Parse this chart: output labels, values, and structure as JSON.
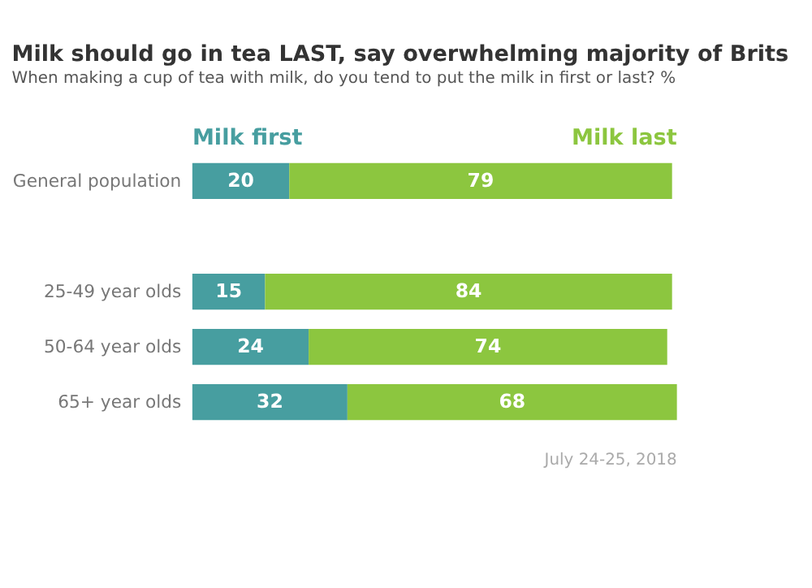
{
  "chart_data": {
    "type": "bar",
    "orientation": "horizontal",
    "stacked": true,
    "data_labels": true,
    "tick_labels": "y",
    "title": "Milk should go in tea LAST, say overwhelming majority of Brits",
    "subtitle": "When making a cup of tea with milk, do you tend to put the milk in first or last? %",
    "categories": [
      "General population",
      null,
      "25-49 year olds",
      "50-64 year olds",
      "65+ year olds"
    ],
    "xlim": [
      0,
      100
    ],
    "legend": "top",
    "series": [
      {
        "name": "Milk first",
        "color": "#479ea0",
        "values": [
          20,
          null,
          15,
          24,
          32
        ]
      },
      {
        "name": "Milk last",
        "color": "#8cc63f",
        "values": [
          79,
          null,
          84,
          74,
          68
        ]
      }
    ],
    "annotations": [
      "July 24-25, 2018"
    ]
  }
}
